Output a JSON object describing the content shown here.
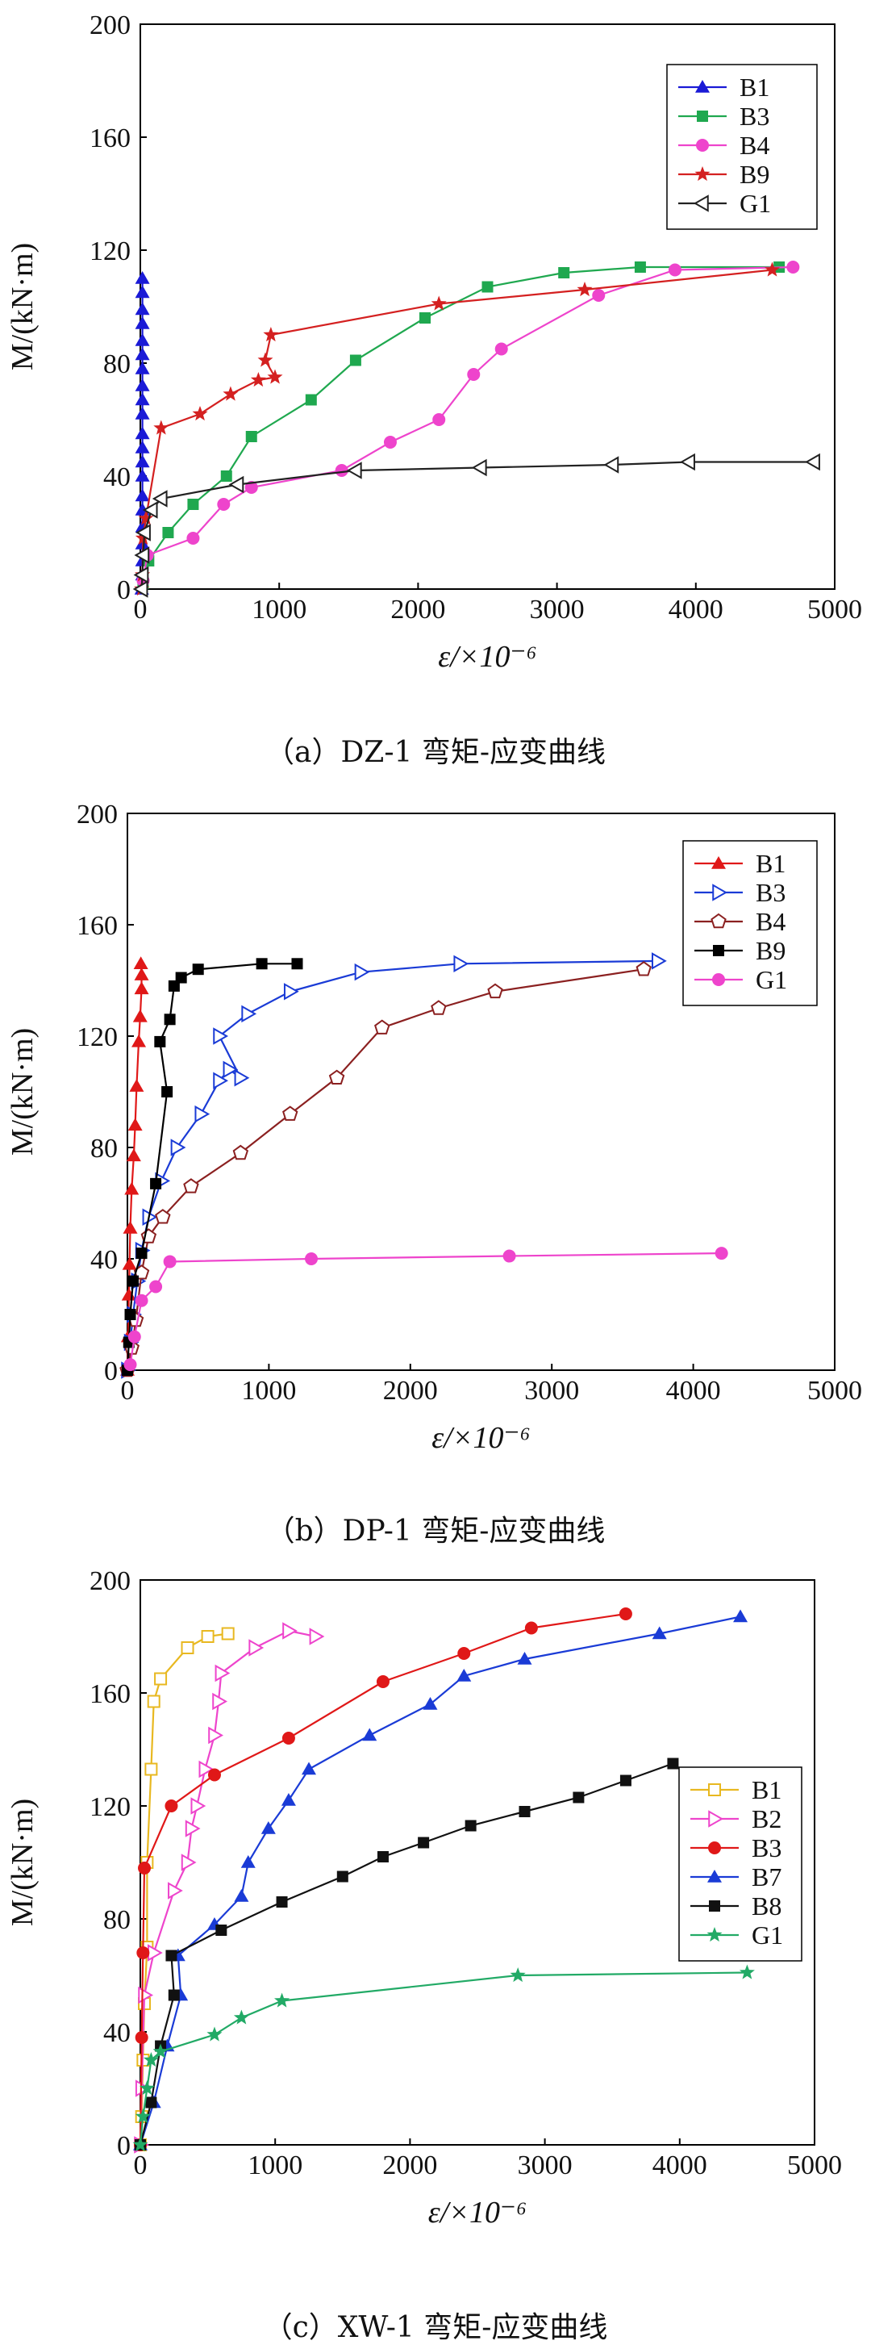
{
  "chart_data": [
    {
      "type": "line",
      "title": "（a）DZ-1 弯矩-应变曲线",
      "xlabel": "ε/×10⁻⁶",
      "ylabel": "M/(kN·m)",
      "xlim": [
        0,
        5000
      ],
      "ylim": [
        0,
        200
      ],
      "xticks": [
        "0",
        "1000",
        "2000",
        "3000",
        "4000",
        "5000"
      ],
      "yticks": [
        "0",
        "40",
        "80",
        "120",
        "160",
        "200"
      ],
      "legend_position": "top-right",
      "series": [
        {
          "name": "B1",
          "color": "#1a1ad6",
          "marker": "triangle",
          "points": [
            [
              10,
              0
            ],
            [
              15,
              5
            ],
            [
              15,
              10
            ],
            [
              15,
              16
            ],
            [
              15,
              22
            ],
            [
              15,
              28
            ],
            [
              15,
              33
            ],
            [
              15,
              40
            ],
            [
              15,
              45
            ],
            [
              15,
              50
            ],
            [
              15,
              55
            ],
            [
              15,
              62
            ],
            [
              15,
              67
            ],
            [
              15,
              72
            ],
            [
              15,
              78
            ],
            [
              15,
              83
            ],
            [
              15,
              88
            ],
            [
              15,
              94
            ],
            [
              15,
              99
            ],
            [
              15,
              105
            ],
            [
              15,
              110
            ]
          ]
        },
        {
          "name": "B3",
          "color": "#1fa84f",
          "marker": "square",
          "points": [
            [
              20,
              2
            ],
            [
              60,
              10
            ],
            [
              200,
              20
            ],
            [
              380,
              30
            ],
            [
              620,
              40
            ],
            [
              800,
              54
            ],
            [
              1230,
              67
            ],
            [
              1550,
              81
            ],
            [
              2050,
              96
            ],
            [
              2500,
              107
            ],
            [
              3050,
              112
            ],
            [
              3600,
              114
            ],
            [
              4600,
              114
            ]
          ]
        },
        {
          "name": "B4",
          "color": "#ee44cc",
          "marker": "circle",
          "points": [
            [
              20,
              3
            ],
            [
              50,
              12
            ],
            [
              380,
              18
            ],
            [
              600,
              30
            ],
            [
              800,
              36
            ],
            [
              1450,
              42
            ],
            [
              1800,
              52
            ],
            [
              2150,
              60
            ],
            [
              2400,
              76
            ],
            [
              2600,
              85
            ],
            [
              3300,
              104
            ],
            [
              3850,
              113
            ],
            [
              4700,
              114
            ]
          ]
        },
        {
          "name": "B9",
          "color": "#d42020",
          "marker": "star",
          "points": [
            [
              10,
              0
            ],
            [
              15,
              5
            ],
            [
              20,
              18
            ],
            [
              40,
              25
            ],
            [
              150,
              57
            ],
            [
              430,
              62
            ],
            [
              650,
              69
            ],
            [
              850,
              74
            ],
            [
              970,
              75
            ],
            [
              900,
              81
            ],
            [
              940,
              90
            ],
            [
              2150,
              101
            ],
            [
              3200,
              106
            ],
            [
              4550,
              113
            ]
          ]
        },
        {
          "name": "G1",
          "color": "#222222",
          "marker": "left-triangle",
          "points": [
            [
              10,
              0
            ],
            [
              15,
              5
            ],
            [
              20,
              12
            ],
            [
              30,
              20
            ],
            [
              80,
              28
            ],
            [
              150,
              32
            ],
            [
              700,
              37
            ],
            [
              1550,
              42
            ],
            [
              2450,
              43
            ],
            [
              3400,
              44
            ],
            [
              3950,
              45
            ],
            [
              4850,
              45
            ]
          ]
        }
      ]
    },
    {
      "type": "line",
      "title": "（b）DP-1 弯矩-应变曲线",
      "xlabel": "ε/×10⁻⁶",
      "ylabel": "M/(kN·m)",
      "xlim": [
        0,
        5000
      ],
      "ylim": [
        0,
        200
      ],
      "xticks": [
        "0",
        "1000",
        "2000",
        "3000",
        "4000",
        "5000"
      ],
      "yticks": [
        "0",
        "40",
        "80",
        "120",
        "160",
        "200"
      ],
      "legend_position": "top-right",
      "series": [
        {
          "name": "B1",
          "color": "#e01818",
          "marker": "triangle",
          "points": [
            [
              0,
              0
            ],
            [
              5,
              12
            ],
            [
              10,
              27
            ],
            [
              15,
              38
            ],
            [
              20,
              51
            ],
            [
              30,
              65
            ],
            [
              45,
              77
            ],
            [
              55,
              88
            ],
            [
              65,
              102
            ],
            [
              80,
              118
            ],
            [
              90,
              127
            ],
            [
              100,
              137
            ],
            [
              100,
              142
            ],
            [
              95,
              146
            ]
          ]
        },
        {
          "name": "B3",
          "color": "#1a3bd6",
          "marker": "right-triangle",
          "points": [
            [
              0,
              0
            ],
            [
              20,
              10
            ],
            [
              40,
              20
            ],
            [
              70,
              32
            ],
            [
              100,
              43
            ],
            [
              150,
              55
            ],
            [
              240,
              68
            ],
            [
              350,
              80
            ],
            [
              520,
              92
            ],
            [
              650,
              104
            ],
            [
              720,
              108
            ],
            [
              800,
              105
            ],
            [
              650,
              120
            ],
            [
              850,
              128
            ],
            [
              1150,
              136
            ],
            [
              1650,
              143
            ],
            [
              2350,
              146
            ],
            [
              3750,
              147
            ]
          ]
        },
        {
          "name": "B4",
          "color": "#8b2020",
          "marker": "pentagon",
          "points": [
            [
              0,
              0
            ],
            [
              30,
              8
            ],
            [
              60,
              18
            ],
            [
              100,
              35
            ],
            [
              150,
              48
            ],
            [
              250,
              55
            ],
            [
              450,
              66
            ],
            [
              800,
              78
            ],
            [
              1150,
              92
            ],
            [
              1480,
              105
            ],
            [
              1800,
              123
            ],
            [
              2200,
              130
            ],
            [
              2600,
              136
            ],
            [
              3650,
              144
            ]
          ]
        },
        {
          "name": "B9",
          "color": "#000000",
          "marker": "square",
          "points": [
            [
              0,
              0
            ],
            [
              10,
              10
            ],
            [
              20,
              20
            ],
            [
              40,
              32
            ],
            [
              100,
              42
            ],
            [
              200,
              67
            ],
            [
              280,
              100
            ],
            [
              230,
              118
            ],
            [
              300,
              126
            ],
            [
              330,
              138
            ],
            [
              380,
              141
            ],
            [
              500,
              144
            ],
            [
              950,
              146
            ],
            [
              1200,
              146
            ]
          ]
        },
        {
          "name": "G1",
          "color": "#ee44cc",
          "marker": "circle",
          "points": [
            [
              20,
              2
            ],
            [
              50,
              12
            ],
            [
              100,
              25
            ],
            [
              200,
              30
            ],
            [
              300,
              39
            ],
            [
              1300,
              40
            ],
            [
              2700,
              41
            ],
            [
              4200,
              42
            ]
          ]
        }
      ]
    },
    {
      "type": "line",
      "title": "（c）XW-1 弯矩-应变曲线",
      "xlabel": "ε/×10⁻⁶",
      "ylabel": "M/(kN·m)",
      "xlim": [
        0,
        5000
      ],
      "ylim": [
        0,
        200
      ],
      "xticks": [
        "0",
        "1000",
        "2000",
        "3000",
        "4000",
        "5000"
      ],
      "yticks": [
        "0",
        "40",
        "80",
        "120",
        "160",
        "200"
      ],
      "legend_position": "right",
      "series": [
        {
          "name": "B1",
          "color": "#e8b820",
          "marker": "square-open",
          "points": [
            [
              0,
              0
            ],
            [
              10,
              10
            ],
            [
              20,
              30
            ],
            [
              30,
              50
            ],
            [
              50,
              70
            ],
            [
              50,
              100
            ],
            [
              80,
              133
            ],
            [
              100,
              157
            ],
            [
              150,
              165
            ],
            [
              350,
              176
            ],
            [
              500,
              180
            ],
            [
              650,
              181
            ]
          ]
        },
        {
          "name": "B2",
          "color": "#ee44cc",
          "marker": "right-triangle",
          "points": [
            [
              0,
              0
            ],
            [
              10,
              20
            ],
            [
              30,
              53
            ],
            [
              100,
              68
            ],
            [
              250,
              90
            ],
            [
              350,
              100
            ],
            [
              380,
              112
            ],
            [
              420,
              120
            ],
            [
              480,
              133
            ],
            [
              550,
              145
            ],
            [
              580,
              157
            ],
            [
              600,
              167
            ],
            [
              850,
              176
            ],
            [
              1100,
              182
            ],
            [
              1300,
              180
            ]
          ]
        },
        {
          "name": "B3",
          "color": "#e01818",
          "marker": "circle",
          "points": [
            [
              0,
              0
            ],
            [
              10,
              38
            ],
            [
              20,
              68
            ],
            [
              30,
              98
            ],
            [
              230,
              120
            ],
            [
              550,
              131
            ],
            [
              1100,
              144
            ],
            [
              1800,
              164
            ],
            [
              2400,
              174
            ],
            [
              2900,
              183
            ],
            [
              3600,
              188
            ]
          ]
        },
        {
          "name": "B7",
          "color": "#1a3bd6",
          "marker": "triangle",
          "points": [
            [
              0,
              0
            ],
            [
              100,
              15
            ],
            [
              200,
              35
            ],
            [
              300,
              53
            ],
            [
              280,
              67
            ],
            [
              550,
              78
            ],
            [
              750,
              88
            ],
            [
              800,
              100
            ],
            [
              950,
              112
            ],
            [
              1100,
              122
            ],
            [
              1250,
              133
            ],
            [
              1700,
              145
            ],
            [
              2150,
              156
            ],
            [
              2400,
              166
            ],
            [
              2850,
              172
            ],
            [
              3850,
              181
            ],
            [
              4450,
              187
            ]
          ]
        },
        {
          "name": "B8",
          "color": "#111111",
          "marker": "square",
          "points": [
            [
              0,
              0
            ],
            [
              80,
              15
            ],
            [
              150,
              35
            ],
            [
              250,
              53
            ],
            [
              230,
              67
            ],
            [
              600,
              76
            ],
            [
              1050,
              86
            ],
            [
              1500,
              95
            ],
            [
              1800,
              102
            ],
            [
              2100,
              107
            ],
            [
              2450,
              113
            ],
            [
              2850,
              118
            ],
            [
              3250,
              123
            ],
            [
              3600,
              129
            ],
            [
              3950,
              135
            ]
          ]
        },
        {
          "name": "G1",
          "color": "#22aa66",
          "marker": "star",
          "points": [
            [
              0,
              0
            ],
            [
              20,
              10
            ],
            [
              50,
              20
            ],
            [
              80,
              30
            ],
            [
              150,
              33
            ],
            [
              550,
              39
            ],
            [
              750,
              45
            ],
            [
              1050,
              51
            ],
            [
              2800,
              60
            ],
            [
              4500,
              61
            ]
          ]
        }
      ]
    }
  ]
}
